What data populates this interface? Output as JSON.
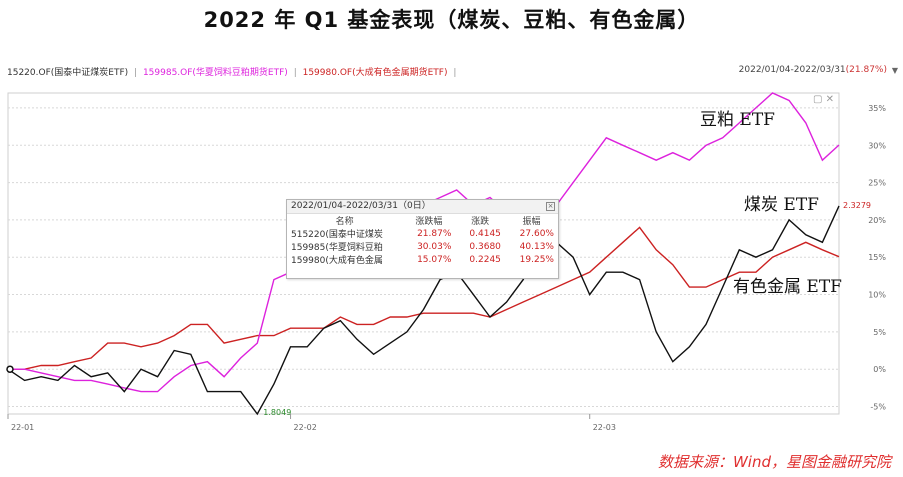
{
  "title": "2022 年 Q1 基金表现（煤炭、豆粕、有色金属）",
  "legend_bar": {
    "items": [
      {
        "label": "15220.OF(国泰中证煤炭ETF)",
        "color": "#333333"
      },
      {
        "label": "159985.OF(华夏饲料豆粕期货ETF)",
        "color": "#dd22dd"
      },
      {
        "label": "159980.OF(大成有色金属期货ETF)",
        "color": "#cc2222"
      }
    ],
    "separator": "|"
  },
  "range": {
    "text": "2022/01/04-2022/03/31",
    "pct": "(21.87%)"
  },
  "tooltip": {
    "header": "2022/01/04-2022/03/31（0日）",
    "columns": [
      "名称",
      "涨跌幅",
      "涨跌",
      "振幅"
    ],
    "rows": [
      {
        "name": "515220(国泰中证煤炭",
        "pct": "21.87%",
        "chg": "0.4145",
        "amp": "27.60%"
      },
      {
        "name": "159985(华夏饲料豆粕",
        "pct": "30.03%",
        "chg": "0.3680",
        "amp": "40.13%"
      },
      {
        "name": "159980(大成有色金属",
        "pct": "15.07%",
        "chg": "0.2245",
        "amp": "19.25%"
      }
    ]
  },
  "annotations": {
    "soybean": "豆粕 ETF",
    "coal": "煤炭 ETF",
    "metal": "有色金属 ETF"
  },
  "point_labels": {
    "min": "1.8049",
    "max": "2.3279"
  },
  "source": "数据来源：Wind，星图金融研究院",
  "chart_data": {
    "type": "line",
    "x_ticks": [
      "22-01",
      "22-02",
      "22-03"
    ],
    "y_ticks": [
      "35%",
      "30%",
      "25%",
      "20%",
      "15%",
      "10%",
      "5%",
      "0%",
      "-5%"
    ],
    "ylim": [
      -6,
      37
    ],
    "series": [
      {
        "name": "15220.OF(国泰中证煤炭ETF)",
        "color": "#111111",
        "values": [
          0,
          -1.5,
          -1,
          -1.5,
          0.5,
          -1,
          -0.5,
          -3,
          0,
          -1,
          2.5,
          2,
          -3,
          -3,
          -3,
          -6,
          -2,
          3,
          3,
          5.5,
          6.5,
          4,
          2,
          3.5,
          5,
          8,
          12,
          13,
          10,
          7,
          9,
          12,
          17,
          17,
          15,
          10,
          13,
          13,
          12,
          5,
          1,
          3,
          6,
          11,
          16,
          15,
          16,
          20,
          18,
          17,
          21.87
        ]
      },
      {
        "name": "159985.OF(华夏饲料豆粕期货ETF)",
        "color": "#dd22dd",
        "values": [
          0,
          0,
          -0.5,
          -1,
          -1.5,
          -1.5,
          -2,
          -2.5,
          -3,
          -3,
          -1,
          0.5,
          1,
          -1,
          1.5,
          3.5,
          12,
          13,
          14,
          15,
          16,
          17,
          18,
          20,
          21,
          22,
          23,
          24,
          22,
          23,
          21,
          20,
          20,
          22,
          25,
          28,
          31,
          30,
          29,
          28,
          29,
          28,
          30,
          31,
          33,
          35,
          37,
          36,
          33,
          28,
          30.03
        ]
      },
      {
        "name": "159980.OF(大成有色金属期货ETF)",
        "color": "#cc2222",
        "values": [
          0,
          0,
          0.5,
          0.5,
          1,
          1.5,
          3.5,
          3.5,
          3,
          3.5,
          4.5,
          6,
          6,
          3.5,
          4,
          4.5,
          4.5,
          5.5,
          5.5,
          5.5,
          7,
          6,
          6,
          7,
          7,
          7.5,
          7.5,
          7.5,
          7.5,
          7,
          8,
          9,
          10,
          11,
          12,
          13,
          15,
          17,
          19,
          16,
          14,
          11,
          11,
          12,
          13,
          13,
          15,
          16,
          17,
          16,
          15.07
        ]
      }
    ]
  }
}
